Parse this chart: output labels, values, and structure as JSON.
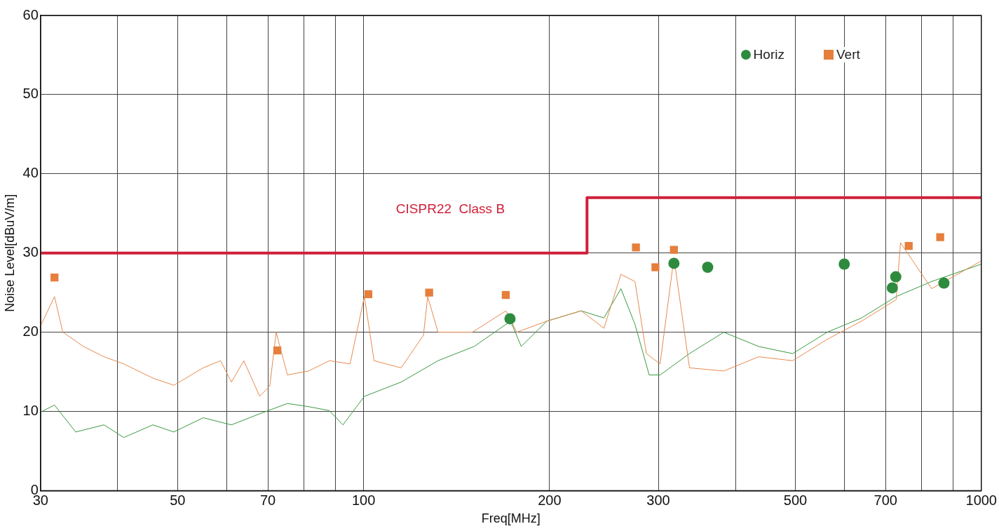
{
  "chart_data": {
    "type": "line",
    "xlabel": "Freq[MHz]",
    "ylabel": "Noise Level[dBuV/m]",
    "log": "x",
    "grid": true,
    "legend": "top right",
    "xlim": [
      30,
      1000
    ],
    "xticks": [
      30,
      {
        "value": 40,
        "label": null
      },
      50,
      {
        "value": 60,
        "label": null
      },
      70,
      {
        "value": 80,
        "label": null
      },
      {
        "value": 90,
        "label": null
      },
      100,
      200,
      300,
      {
        "value": 400,
        "label": null
      },
      500,
      {
        "value": 600,
        "label": null
      },
      700,
      {
        "value": 800,
        "label": null
      },
      {
        "value": 900,
        "label": null
      },
      1000
    ],
    "ylim": [
      0,
      60
    ],
    "yticks": [
      0,
      10,
      20,
      30,
      40,
      50,
      60
    ],
    "series": [
      {
        "type": "line",
        "color": "#e58a4e",
        "x": [
          30,
          31.6,
          32.6,
          35.2,
          38,
          40.9,
          45.6,
          49.3,
          55,
          58.7,
          61.1,
          64,
          67.9,
          70.5,
          72.2,
          75.3,
          81.5,
          88,
          95.1,
          100.3,
          104,
          115,
          125,
          127,
          132,
          150,
          170,
          177,
          198,
          225,
          245,
          261,
          275,
          287,
          302,
          318,
          337,
          383,
          436,
          495,
          563,
          640,
          728,
          740,
          831,
          1000
        ],
        "values": [
          20.8,
          24.5,
          20,
          18.2,
          16.9,
          16,
          14.2,
          13.3,
          15.5,
          16.4,
          13.7,
          16.4,
          11.9,
          13.2,
          20,
          14.6,
          15.1,
          16.4,
          16,
          24.5,
          16.4,
          15.5,
          19.6,
          24.5,
          20,
          20,
          22.7,
          20,
          21.4,
          22.7,
          20.5,
          27.3,
          26.4,
          17.3,
          16,
          29.4,
          15.5,
          15.1,
          16.9,
          16.4,
          19.1,
          21.4,
          24.1,
          31.3,
          25.5,
          29
        ]
      },
      {
        "type": "line",
        "color": "#3a9a40",
        "x": [
          30,
          31.6,
          34.2,
          38,
          40.9,
          45.6,
          49.3,
          55,
          61.1,
          67.9,
          75.3,
          81.5,
          88,
          92.6,
          100.3,
          115,
          132,
          151,
          173,
          180,
          198,
          225,
          245,
          261,
          275,
          290,
          302,
          337,
          383,
          436,
          495,
          563,
          640,
          728,
          831,
          1000
        ],
        "values": [
          9.9,
          10.8,
          7.4,
          8.3,
          6.7,
          8.3,
          7.4,
          9.2,
          8.3,
          9.7,
          11,
          10.6,
          10.1,
          8.3,
          11.9,
          13.7,
          16.4,
          18.2,
          21.4,
          18.2,
          21.4,
          22.7,
          21.8,
          25.5,
          21,
          14.6,
          14.6,
          17.3,
          20,
          18.2,
          17.3,
          20,
          21.8,
          24.5,
          26.4,
          28.6
        ]
      },
      {
        "type": "step",
        "name": "CISPR22  Class B",
        "color": "#d0203a",
        "x": [
          30,
          230,
          1000
        ],
        "values": [
          30,
          37,
          37
        ]
      },
      {
        "type": "scatter",
        "name": "Horiz",
        "marker": "circle",
        "color": "#2e8b3e",
        "x": [
          172.6,
          318,
          360.6,
          600,
          717.7,
          727,
          870
        ],
        "values": [
          21.7,
          28.7,
          28.2,
          28.6,
          25.6,
          27,
          26.2
        ]
      },
      {
        "type": "scatter",
        "name": "Vert",
        "marker": "square",
        "color": "#e67e3c",
        "x": [
          31.6,
          72.5,
          101.8,
          127.7,
          169.9,
          276,
          296.8,
          318,
          763,
          858
        ],
        "values": [
          26.9,
          17.7,
          24.8,
          25,
          24.7,
          30.7,
          28.2,
          30.4,
          30.9,
          32
        ]
      }
    ]
  }
}
